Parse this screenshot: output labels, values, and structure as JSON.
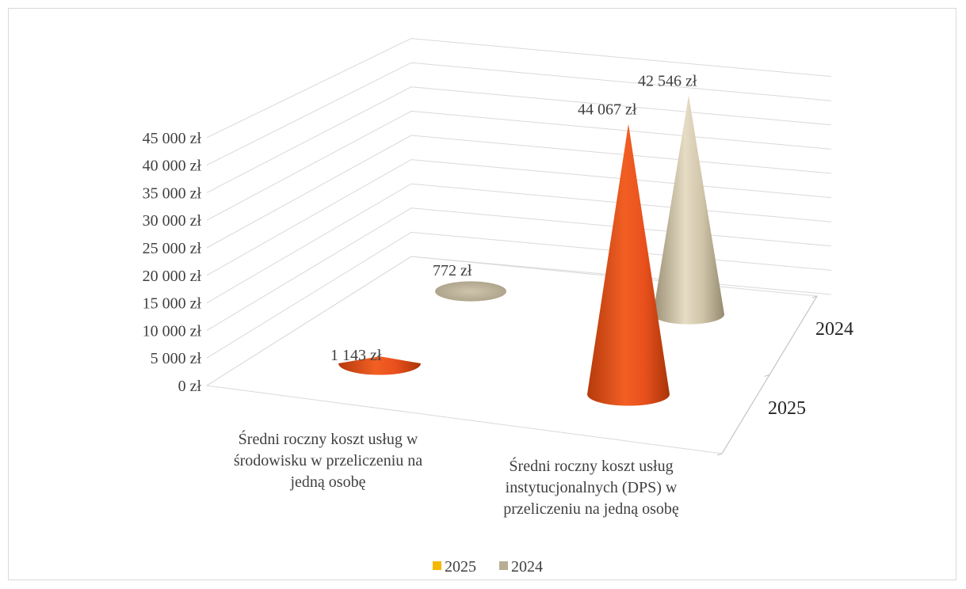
{
  "chart_data": {
    "type": "bar",
    "shape": "cone",
    "view": "3d",
    "categories": [
      [
        "Średni roczny koszt usług w",
        "środowisku w przeliczeniu na",
        "jedną osobę"
      ],
      [
        "Średni roczny koszt usług",
        "instytucjonalnych (DPS) w",
        "przeliczeniu na jedną osobę"
      ]
    ],
    "series": [
      {
        "name": "2025",
        "values": [
          1143,
          44067
        ],
        "value_labels": [
          "1 143 zł",
          "44 067 zł"
        ],
        "color": "#e8501c",
        "legend_color": "#f5b800"
      },
      {
        "name": "2024",
        "values": [
          772,
          42546
        ],
        "value_labels": [
          "772 zł",
          "42 546 zł"
        ],
        "color": "#c5b99a",
        "legend_color": "#b8ad93"
      }
    ],
    "depth_labels": [
      "2025",
      "2024"
    ],
    "y_ticks": [
      0,
      5000,
      10000,
      15000,
      20000,
      25000,
      30000,
      35000,
      40000,
      45000
    ],
    "y_tick_labels": [
      "0 zł",
      "5 000 zł",
      "10 000 zł",
      "15 000 zł",
      "20 000 zł",
      "25 000 zł",
      "30 000 zł",
      "35 000 zł",
      "40 000 zł",
      "45 000 zł"
    ],
    "ylim": [
      0,
      45000
    ],
    "grid": true,
    "legend_position": "bottom",
    "legend": [
      "2025",
      "2024"
    ]
  }
}
